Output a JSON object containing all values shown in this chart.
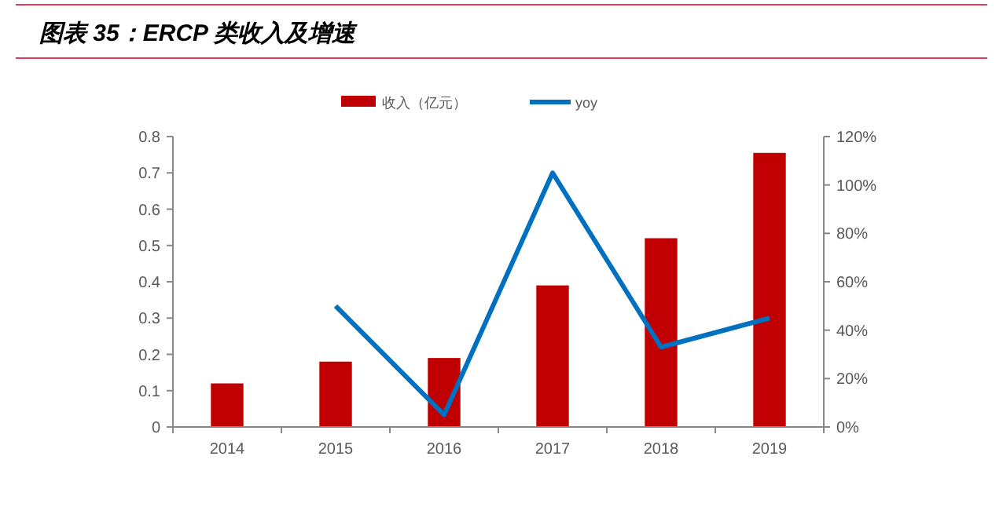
{
  "chart_data": {
    "type": "bar",
    "title": "图表 35：ERCP 类收入及增速",
    "categories": [
      "2014",
      "2015",
      "2016",
      "2017",
      "2018",
      "2019"
    ],
    "series": [
      {
        "name": "收入（亿元）",
        "color": "#c00000",
        "values": [
          0.12,
          0.18,
          0.19,
          0.39,
          0.52,
          0.755
        ]
      },
      {
        "name": "yoy",
        "type": "line",
        "axis": "y2",
        "color": "#0070c0",
        "values": [
          null,
          50,
          5,
          105,
          33,
          45
        ]
      }
    ],
    "ylim": [
      0,
      0.8
    ],
    "yticks": [
      0,
      0.1,
      0.2,
      0.3,
      0.4,
      0.5,
      0.6,
      0.7,
      0.8
    ],
    "y2lim": [
      0,
      120
    ],
    "y2ticks": [
      {
        "value": 0,
        "label": "0%"
      },
      {
        "value": 20,
        "label": "20%"
      },
      {
        "value": 40,
        "label": "40%"
      },
      {
        "value": 60,
        "label": "60%"
      },
      {
        "value": 80,
        "label": "80%"
      },
      {
        "value": 100,
        "label": "100%"
      },
      {
        "value": 120,
        "label": "120%"
      }
    ],
    "grid": false,
    "legend": "top",
    "marker": "none",
    "line_style": "solid"
  }
}
